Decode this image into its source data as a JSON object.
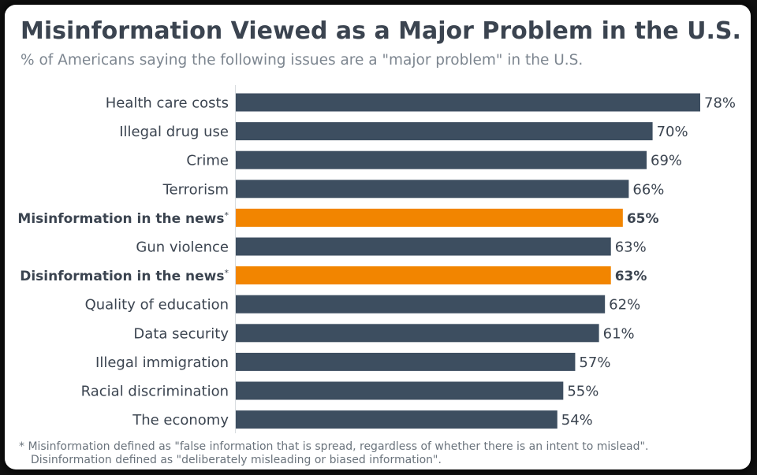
{
  "chart_data": {
    "type": "bar",
    "orientation": "horizontal",
    "title": "Misinformation Viewed as a Major Problem in the U.S.",
    "subtitle": "% of Americans saying the following issues are a \"major problem\" in the U.S.",
    "categories": [
      "Health care costs",
      "Illegal drug use",
      "Crime",
      "Terrorism",
      "Misinformation in the news",
      "Gun violence",
      "Disinformation in the news",
      "Quality of education",
      "Data security",
      "Illegal immigration",
      "Racial discrimination",
      "The economy"
    ],
    "values": [
      78,
      70,
      69,
      66,
      65,
      63,
      63,
      62,
      61,
      57,
      55,
      54
    ],
    "value_labels": [
      "78%",
      "70%",
      "69%",
      "66%",
      "65%",
      "63%",
      "63%",
      "62%",
      "61%",
      "57%",
      "55%",
      "54%"
    ],
    "asterisk": "*",
    "highlighted": [
      4,
      6
    ],
    "colors": {
      "default": "#3d4e60",
      "highlight": "#f28500"
    },
    "xlim": [
      0,
      78
    ],
    "footnote": [
      "* Misinformation defined as \"false information that is spread, regardless of whether there is an intent to mislead\".",
      "Disinformation defined as \"deliberately misleading or biased information\"."
    ]
  }
}
